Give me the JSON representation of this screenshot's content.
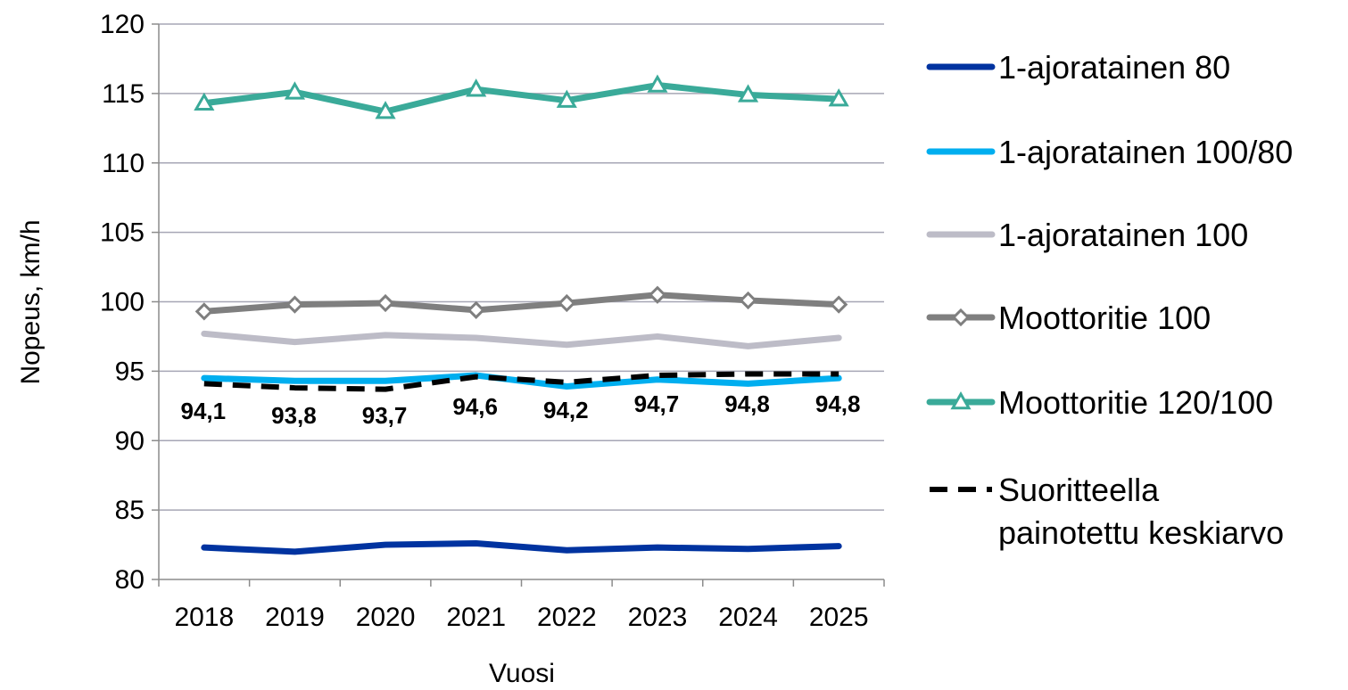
{
  "chart_data": {
    "type": "line",
    "title": "",
    "xlabel": "Vuosi",
    "ylabel": "Nopeus, km/h",
    "categories": [
      "2018",
      "2019",
      "2020",
      "2021",
      "2022",
      "2023",
      "2024",
      "2025"
    ],
    "ylim": [
      80,
      120
    ],
    "yticks": [
      "80",
      "85",
      "90",
      "95",
      "100",
      "105",
      "110",
      "115",
      "120"
    ],
    "grid": "horizontal",
    "legend_position": "right",
    "series": [
      {
        "name": "1-ajoratainen 80",
        "values": [
          82.3,
          82.0,
          82.5,
          82.6,
          82.1,
          82.3,
          82.2,
          82.4
        ],
        "color": "#0033A0",
        "marker": "none",
        "dash": "solid"
      },
      {
        "name": "1-ajoratainen 100/80",
        "values": [
          94.5,
          94.3,
          94.3,
          94.7,
          93.9,
          94.4,
          94.1,
          94.5
        ],
        "color": "#00AEEF",
        "marker": "none",
        "dash": "solid"
      },
      {
        "name": "1-ajoratainen 100",
        "values": [
          97.7,
          97.1,
          97.6,
          97.4,
          96.9,
          97.5,
          96.8,
          97.4
        ],
        "color": "#BDBCC7",
        "marker": "none",
        "dash": "solid"
      },
      {
        "name": "Moottoritie 100",
        "values": [
          99.3,
          99.8,
          99.9,
          99.4,
          99.9,
          100.5,
          100.1,
          99.8
        ],
        "color": "#7F7F7F",
        "marker": "diamond",
        "dash": "solid"
      },
      {
        "name": "Moottoritie 120/100",
        "values": [
          114.3,
          115.1,
          113.7,
          115.3,
          114.5,
          115.6,
          114.9,
          114.6
        ],
        "color": "#3AAA99",
        "marker": "triangle",
        "dash": "solid"
      },
      {
        "name": "Suoritteella painotettu keskiarvo",
        "name_lines": [
          "Suoritteella",
          "painotettu keskiarvo"
        ],
        "values": [
          94.1,
          93.8,
          93.7,
          94.6,
          94.2,
          94.7,
          94.8,
          94.8
        ],
        "data_labels": [
          "94,1",
          "93,8",
          "93,7",
          "94,6",
          "94,2",
          "94,7",
          "94,8",
          "94,8"
        ],
        "color": "#000000",
        "marker": "none",
        "dash": "dashed"
      }
    ]
  }
}
